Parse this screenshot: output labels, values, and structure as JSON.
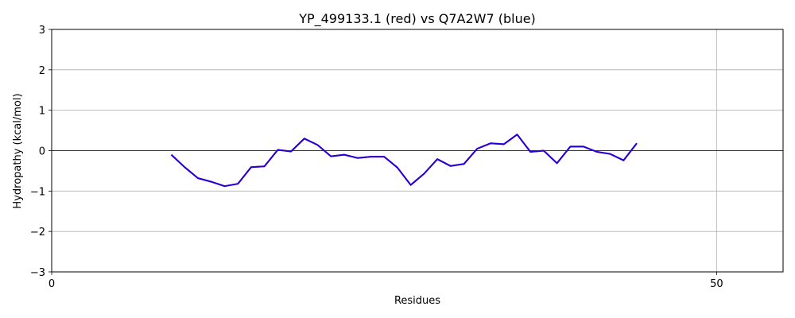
{
  "chart_data": {
    "type": "line",
    "title": "YP_499133.1 (red) vs Q7A2W7 (blue)",
    "xlabel": "Residues",
    "ylabel": "Hydropathy (kcal/mol)",
    "xlim": [
      0,
      55
    ],
    "ylim": [
      -3,
      3
    ],
    "xticks": [
      0,
      50
    ],
    "yticks": [
      -3,
      -2,
      -1,
      0,
      1,
      2,
      3
    ],
    "grid": true,
    "series": [
      {
        "color": "#ff0000",
        "x": [
          9,
          10,
          11,
          12,
          13,
          14,
          15,
          16,
          17,
          18,
          19,
          20,
          21,
          22,
          23,
          24,
          25,
          26,
          27,
          28,
          29,
          30,
          31,
          32,
          33,
          34,
          35,
          36,
          37,
          38,
          39,
          40,
          41,
          42,
          43,
          44
        ],
        "y": [
          -0.1,
          -0.41,
          -0.68,
          -0.77,
          -0.88,
          -0.82,
          -0.41,
          -0.39,
          0.02,
          -0.02,
          0.3,
          0.14,
          -0.14,
          -0.1,
          -0.18,
          -0.15,
          -0.15,
          -0.42,
          -0.85,
          -0.57,
          -0.21,
          -0.38,
          -0.33,
          0.05,
          0.18,
          0.16,
          0.4,
          -0.03,
          0.0,
          -0.31,
          0.1,
          0.1,
          -0.03,
          -0.08,
          -0.24,
          0.18
        ]
      },
      {
        "color": "#0000ff",
        "x": [
          9,
          10,
          11,
          12,
          13,
          14,
          15,
          16,
          17,
          18,
          19,
          20,
          21,
          22,
          23,
          24,
          25,
          26,
          27,
          28,
          29,
          30,
          31,
          32,
          33,
          34,
          35,
          36,
          37,
          38,
          39,
          40,
          41,
          42,
          43,
          44
        ],
        "y": [
          -0.1,
          -0.41,
          -0.68,
          -0.77,
          -0.88,
          -0.82,
          -0.41,
          -0.39,
          0.02,
          -0.02,
          0.3,
          0.14,
          -0.14,
          -0.1,
          -0.18,
          -0.15,
          -0.15,
          -0.42,
          -0.85,
          -0.57,
          -0.21,
          -0.38,
          -0.33,
          0.05,
          0.18,
          0.16,
          0.4,
          -0.03,
          0.0,
          -0.31,
          0.1,
          0.1,
          -0.03,
          -0.08,
          -0.24,
          0.18
        ]
      }
    ]
  }
}
